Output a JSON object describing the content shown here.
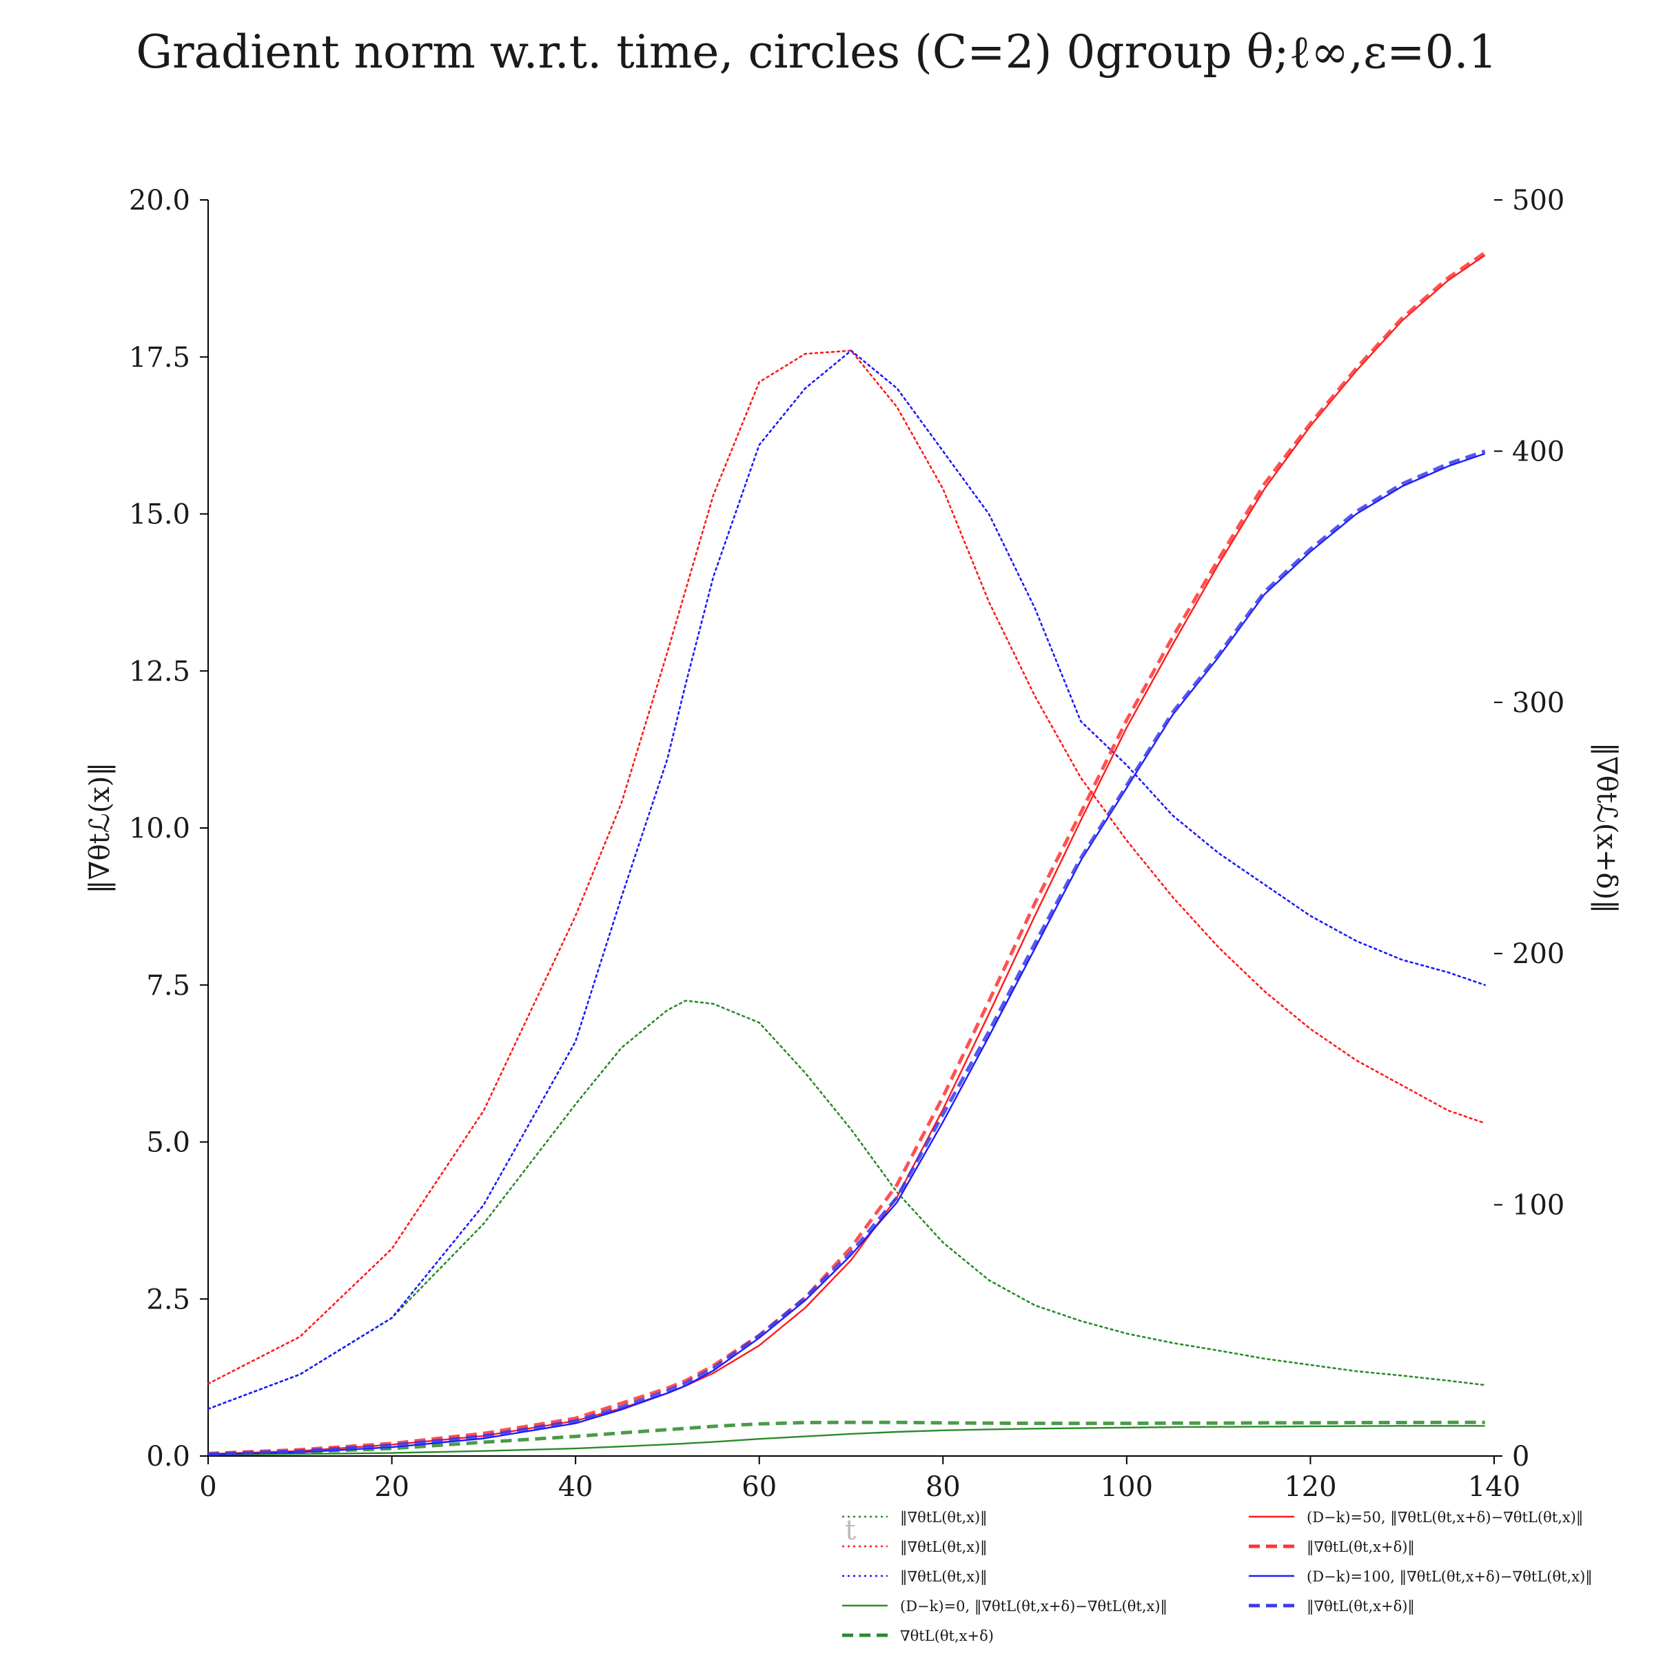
{
  "chart_data": {
    "type": "line",
    "title": "Gradient norm w.r.t. time, circles (C=2) 0group θ;ℓ∞,ε=0.1",
    "xlabel": "t",
    "ylabel_left": "‖∇θtℒ(x)‖",
    "ylabel_right": "‖∇θtℒ(x+δ)‖",
    "xlim": [
      0,
      140
    ],
    "ylim_left": [
      0,
      20
    ],
    "ylim_right": [
      0,
      500
    ],
    "x_ticks": [
      "0",
      "20",
      "40",
      "60",
      "80",
      "100",
      "120",
      "140"
    ],
    "y_left_ticks": [
      "0.0",
      "2.5",
      "5.0",
      "7.5",
      "10.0",
      "12.5",
      "15.0",
      "17.5",
      "20.0"
    ],
    "y_right_ticks": [
      "0",
      "100",
      "200",
      "300",
      "400",
      "500"
    ],
    "grid": false,
    "legend_position": "bottom-right, below axes",
    "x": [
      0,
      10,
      20,
      30,
      40,
      45,
      50,
      52,
      55,
      60,
      65,
      70,
      75,
      80,
      85,
      90,
      95,
      100,
      105,
      110,
      115,
      120,
      125,
      130,
      135,
      139
    ],
    "series": [
      {
        "name": "‖∇θtL(θt,x)‖",
        "axis": "left",
        "color": "#2a8a2a",
        "style": "dotted",
        "values": [
          0.75,
          1.3,
          2.2,
          3.7,
          5.6,
          6.5,
          7.1,
          7.25,
          7.2,
          6.9,
          6.1,
          5.2,
          4.2,
          3.4,
          2.8,
          2.4,
          2.15,
          1.95,
          1.8,
          1.68,
          1.55,
          1.45,
          1.35,
          1.28,
          1.2,
          1.13
        ]
      },
      {
        "name": "‖∇θtL(θt,x)‖",
        "axis": "left",
        "color": "#ff1a1a",
        "style": "dotted",
        "values": [
          1.15,
          1.9,
          3.3,
          5.5,
          8.6,
          10.4,
          12.8,
          13.8,
          15.3,
          17.1,
          17.55,
          17.6,
          16.7,
          15.4,
          13.6,
          12.1,
          10.8,
          9.8,
          8.9,
          8.1,
          7.4,
          6.8,
          6.3,
          5.9,
          5.5,
          5.3
        ]
      },
      {
        "name": "‖∇θtL(θt,x)‖",
        "axis": "left",
        "color": "#1a1aff",
        "style": "dotted",
        "values": [
          0.75,
          1.3,
          2.2,
          4.0,
          6.6,
          8.9,
          11.1,
          12.3,
          14.0,
          16.1,
          17.0,
          17.6,
          17.0,
          16.0,
          15.0,
          13.5,
          11.7,
          11.0,
          10.2,
          9.6,
          9.1,
          8.6,
          8.2,
          7.9,
          7.7,
          7.5
        ]
      },
      {
        "name": "(D−k)=0, ‖∇θtL(θt,x+δ)−∇θtL(θt,x)‖",
        "axis": "right",
        "color": "#2a8a2a",
        "style": "solid",
        "values": [
          0.5,
          0.8,
          1.2,
          2.0,
          3.0,
          3.8,
          4.6,
          5.0,
          5.6,
          6.8,
          7.8,
          8.8,
          9.6,
          10.2,
          10.6,
          10.9,
          11.1,
          11.3,
          11.5,
          11.6,
          11.7,
          11.8,
          11.9,
          12.0,
          12.0,
          12.0
        ]
      },
      {
        "name": "∇θtL(θt,x+δ)",
        "axis": "right",
        "color": "#2a8a2a",
        "style": "dashed",
        "values": [
          0.8,
          1.6,
          3.0,
          5.5,
          7.8,
          9.2,
          10.5,
          11.0,
          11.8,
          12.8,
          13.3,
          13.4,
          13.4,
          13.2,
          13.1,
          13.0,
          13.0,
          13.0,
          13.1,
          13.1,
          13.2,
          13.2,
          13.3,
          13.3,
          13.4,
          13.4
        ]
      },
      {
        "name": "(D−k)=50, ‖∇θtL(θt,x+δ)−∇θtL(θt,x)‖",
        "axis": "right",
        "color": "#ff1a1a",
        "style": "solid",
        "values": [
          0.8,
          2.0,
          4.5,
          8.0,
          14.0,
          19.0,
          25.0,
          28.0,
          33.0,
          44.0,
          59.0,
          78.0,
          103.0,
          138.0,
          176.0,
          215.0,
          253.0,
          290.0,
          323.0,
          355.0,
          385.0,
          410.0,
          432.0,
          452.0,
          468.0,
          478.0
        ]
      },
      {
        "name": "‖∇θtL(θt,x+δ)‖",
        "axis": "right",
        "color": "#ff3333",
        "style": "dashed",
        "values": [
          1.0,
          2.5,
          5.0,
          9.0,
          15.0,
          21.0,
          27.0,
          30.0,
          36.0,
          48.0,
          63.0,
          83.0,
          108.0,
          143.0,
          181.0,
          220.0,
          256.0,
          293.0,
          326.0,
          357.0,
          387.0,
          411.0,
          433.0,
          453.0,
          469.0,
          479.0
        ]
      },
      {
        "name": "(D−k)=100, ‖∇θtL(θt,x+δ)−∇θtL(θt,x)‖",
        "axis": "right",
        "color": "#1a1aff",
        "style": "solid",
        "values": [
          0.6,
          1.5,
          3.5,
          7.0,
          13.0,
          18.5,
          25.0,
          28.0,
          34.0,
          47.0,
          62.0,
          80.0,
          101.0,
          133.0,
          167.0,
          202.0,
          237.0,
          266.0,
          295.0,
          318.0,
          343.0,
          360.0,
          375.0,
          386.0,
          394.0,
          399.0
        ]
      },
      {
        "name": "‖∇θtL(θt,x+δ)‖",
        "axis": "right",
        "color": "#3a3aee",
        "style": "dashed",
        "values": [
          0.8,
          2.0,
          4.3,
          8.0,
          14.0,
          19.5,
          26.0,
          29.0,
          35.0,
          48.0,
          63.0,
          81.0,
          103.0,
          136.0,
          169.0,
          204.0,
          238.0,
          267.0,
          296.0,
          319.0,
          344.0,
          361.0,
          376.0,
          387.0,
          395.0,
          400.0
        ]
      }
    ]
  }
}
